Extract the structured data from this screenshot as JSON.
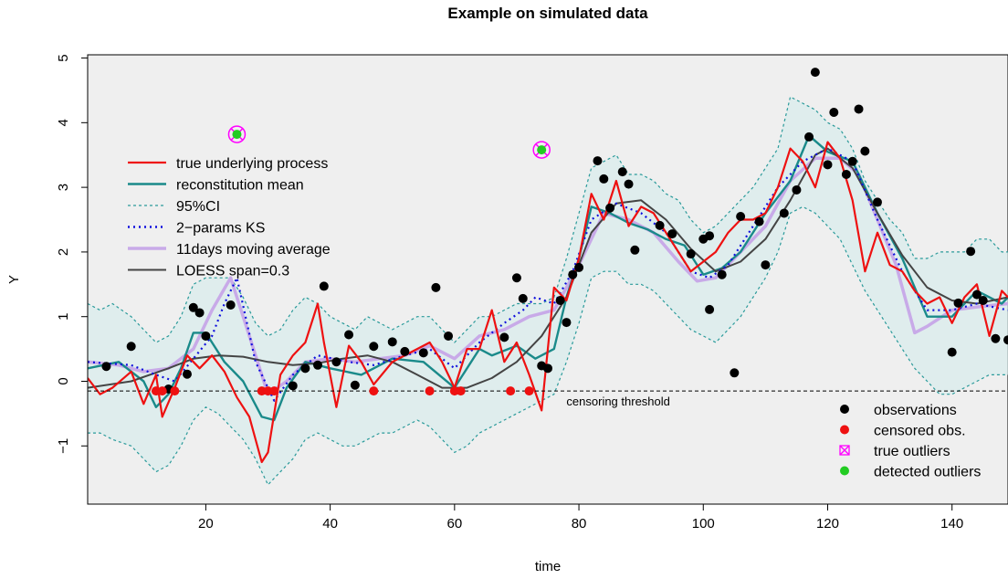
{
  "chart_data": {
    "type": "line",
    "title": "Example on simulated data",
    "xlabel": "time",
    "ylabel": "Y",
    "xlim": [
      1,
      149
    ],
    "ylim": [
      -1.9,
      5.05
    ],
    "x_ticks": [
      20,
      40,
      60,
      80,
      100,
      120,
      140
    ],
    "y_ticks": [
      -1,
      0,
      1,
      2,
      3,
      4,
      5
    ],
    "background": "#efefef",
    "censoring_threshold": -0.15,
    "censoring_label": "censoring threshold",
    "legend_top": [
      {
        "label": "true underlying process",
        "color": "#ee1111",
        "style": "solid"
      },
      {
        "label": "reconstitution mean",
        "color": "#1a8a8a",
        "style": "solid"
      },
      {
        "label": "95%CI",
        "color": "#2a9a9a",
        "style": "dotted"
      },
      {
        "label": "2−params KS",
        "color": "#1010dd",
        "style": "dotted"
      },
      {
        "label": "11days moving average",
        "color": "#c8aae8",
        "style": "solid"
      },
      {
        "label": "LOESS span=0.3",
        "color": "#444444",
        "style": "solid"
      }
    ],
    "legend_bottom": [
      {
        "label": "observations",
        "color": "#000000",
        "marker": "dot"
      },
      {
        "label": "censored obs.",
        "color": "#ee1111",
        "marker": "dot"
      },
      {
        "label": "true outliers",
        "color": "#ff00ff",
        "marker": "crossed-box"
      },
      {
        "label": "detected outliers",
        "color": "#22cc22",
        "marker": "dot"
      }
    ],
    "series": [
      {
        "name": "true underlying process",
        "color": "#ee1111",
        "x": [
          1,
          3,
          5,
          8,
          10,
          12,
          13,
          15,
          17,
          19,
          21,
          23,
          25,
          27,
          29,
          30,
          32,
          34,
          36,
          38,
          39,
          41,
          43,
          45,
          47,
          50,
          53,
          56,
          58,
          60,
          62,
          64,
          66,
          68,
          70,
          72,
          74,
          76,
          78,
          80,
          82,
          84,
          86,
          88,
          90,
          92,
          94,
          96,
          98,
          100,
          102,
          104,
          106,
          108,
          110,
          112,
          114,
          116,
          118,
          120,
          122,
          124,
          126,
          128,
          130,
          132,
          134,
          136,
          138,
          140,
          142,
          144,
          146,
          148,
          149
        ],
        "y": [
          0.05,
          -0.2,
          -0.1,
          0.15,
          -0.35,
          0.1,
          -0.55,
          -0.1,
          0.4,
          0.2,
          0.4,
          0.15,
          -0.25,
          -0.55,
          -1.25,
          -1.1,
          0.1,
          0.4,
          0.6,
          1.2,
          0.6,
          -0.4,
          0.55,
          0.3,
          -0.05,
          0.3,
          0.45,
          0.6,
          0.3,
          -0.1,
          0.5,
          0.5,
          1.1,
          0.3,
          0.6,
          0.1,
          -0.45,
          1.45,
          1.25,
          1.9,
          2.9,
          2.5,
          3.1,
          2.4,
          2.7,
          2.6,
          2.3,
          2.0,
          1.7,
          1.85,
          2.0,
          2.3,
          2.5,
          2.5,
          2.6,
          3.0,
          3.6,
          3.4,
          3.0,
          3.7,
          3.45,
          2.8,
          1.7,
          2.3,
          1.8,
          1.7,
          1.4,
          1.2,
          1.3,
          0.9,
          1.3,
          1.5,
          0.7,
          1.4,
          1.3
        ]
      },
      {
        "name": "reconstitution mean",
        "color": "#1a8a8a",
        "x": [
          1,
          6,
          10,
          12,
          14,
          16,
          18,
          20,
          23,
          26,
          29,
          31,
          33,
          36,
          40,
          45,
          50,
          55,
          60,
          64,
          66,
          70,
          73,
          76,
          78,
          80,
          82,
          85,
          88,
          91,
          94,
          97,
          100,
          103,
          106,
          110,
          114,
          117,
          120,
          124,
          128,
          132,
          136,
          140,
          144,
          148,
          149
        ],
        "y": [
          0.2,
          0.3,
          0.0,
          -0.4,
          -0.2,
          0.2,
          0.75,
          0.75,
          0.3,
          0.0,
          -0.55,
          -0.6,
          -0.1,
          0.3,
          0.2,
          0.1,
          0.35,
          0.3,
          -0.1,
          0.5,
          0.4,
          0.55,
          0.35,
          0.5,
          1.3,
          1.9,
          2.7,
          2.6,
          2.45,
          2.35,
          2.2,
          2.1,
          1.65,
          1.75,
          2.0,
          2.6,
          3.1,
          3.8,
          3.55,
          3.4,
          2.6,
          1.9,
          1.0,
          1.0,
          1.4,
          1.2,
          1.3
        ]
      },
      {
        "name": "2−params KS",
        "color": "#1010dd",
        "x": [
          1,
          8,
          12,
          15,
          18,
          21,
          23,
          25,
          28,
          31,
          34,
          38,
          43,
          47,
          52,
          56,
          60,
          64,
          68,
          71,
          73,
          76,
          79,
          82,
          86,
          90,
          94,
          98,
          101,
          104,
          108,
          112,
          116,
          120,
          124,
          128,
          132,
          136,
          140,
          144,
          149
        ],
        "y": [
          0.3,
          0.25,
          0.1,
          0.0,
          0.35,
          0.7,
          1.2,
          1.6,
          0.3,
          -0.3,
          0.1,
          0.4,
          0.3,
          0.25,
          0.4,
          0.5,
          0.2,
          0.6,
          0.9,
          1.1,
          1.3,
          1.2,
          1.7,
          2.5,
          2.75,
          2.6,
          2.3,
          1.7,
          1.6,
          1.8,
          2.4,
          3.0,
          3.4,
          3.6,
          3.4,
          2.5,
          1.7,
          1.1,
          1.1,
          1.2,
          1.1
        ]
      },
      {
        "name": "11days moving average",
        "color": "#c8aae8",
        "x": [
          1,
          6,
          10,
          14,
          18,
          21,
          24,
          27,
          30,
          33,
          36,
          40,
          44,
          48,
          52,
          56,
          60,
          64,
          68,
          72,
          76,
          80,
          84,
          88,
          92,
          96,
          99,
          102,
          106,
          110,
          114,
          118,
          122,
          125,
          128,
          131,
          134,
          136,
          140,
          144,
          149
        ],
        "y": [
          0.3,
          0.25,
          0.15,
          0.2,
          0.5,
          1.1,
          1.6,
          0.7,
          -0.2,
          0.0,
          0.3,
          0.35,
          0.3,
          0.35,
          0.4,
          0.55,
          0.35,
          0.7,
          0.8,
          1.0,
          1.1,
          1.8,
          2.6,
          2.5,
          2.3,
          1.85,
          1.55,
          1.6,
          2.0,
          2.4,
          3.1,
          3.45,
          3.45,
          3.2,
          2.5,
          1.8,
          0.75,
          0.85,
          1.1,
          1.15,
          1.2
        ]
      },
      {
        "name": "LOESS span=0.3",
        "color": "#444444",
        "x": [
          1,
          8,
          14,
          18,
          22,
          26,
          30,
          34,
          38,
          42,
          46,
          50,
          54,
          58,
          62,
          66,
          70,
          74,
          78,
          82,
          86,
          90,
          94,
          98,
          102,
          106,
          110,
          114,
          118,
          120,
          124,
          128,
          132,
          136,
          140,
          144,
          149
        ],
        "y": [
          -0.1,
          0.0,
          0.2,
          0.35,
          0.4,
          0.38,
          0.3,
          0.25,
          0.28,
          0.35,
          0.4,
          0.3,
          0.1,
          -0.1,
          -0.1,
          0.05,
          0.3,
          0.7,
          1.3,
          2.3,
          2.75,
          2.8,
          2.5,
          2.05,
          1.7,
          1.85,
          2.2,
          2.8,
          3.5,
          3.6,
          3.3,
          2.6,
          1.95,
          1.45,
          1.25,
          1.2,
          1.3
        ]
      }
    ],
    "ci_upper": {
      "x": [
        1,
        3,
        5,
        8,
        10,
        12,
        14,
        16,
        18,
        20,
        22,
        24,
        26,
        28,
        30,
        32,
        34,
        36,
        38,
        40,
        42,
        44,
        46,
        48,
        50,
        52,
        54,
        56,
        58,
        60,
        62,
        64,
        66,
        68,
        70,
        72,
        74,
        76,
        78,
        80,
        82,
        84,
        86,
        88,
        90,
        92,
        94,
        96,
        98,
        100,
        102,
        104,
        106,
        108,
        110,
        112,
        114,
        116,
        118,
        120,
        122,
        124,
        126,
        128,
        130,
        132,
        134,
        136,
        138,
        140,
        142,
        144,
        146,
        148,
        149
      ],
      "y": [
        1.2,
        1.1,
        1.2,
        1.0,
        0.8,
        0.6,
        0.7,
        1.0,
        1.5,
        1.6,
        1.6,
        1.6,
        1.3,
        0.9,
        0.7,
        0.8,
        1.1,
        1.3,
        1.2,
        1.0,
        0.9,
        0.8,
        1.0,
        0.9,
        0.8,
        0.9,
        1.0,
        1.0,
        0.8,
        0.6,
        0.8,
        1.0,
        1.0,
        1.1,
        1.2,
        1.2,
        1.2,
        1.3,
        1.9,
        2.6,
        3.3,
        3.4,
        3.5,
        3.2,
        3.2,
        3.1,
        2.9,
        2.8,
        2.5,
        2.3,
        2.4,
        2.6,
        2.8,
        3.0,
        3.3,
        3.6,
        4.4,
        4.3,
        4.2,
        4.0,
        3.9,
        3.6,
        3.1,
        2.8,
        2.5,
        2.3,
        1.9,
        1.9,
        2.0,
        2.0,
        2.0,
        2.2,
        2.2,
        2.0,
        2.0
      ]
    },
    "ci_lower": {
      "x": [
        1,
        3,
        5,
        8,
        10,
        12,
        14,
        16,
        18,
        20,
        22,
        24,
        26,
        28,
        30,
        32,
        34,
        36,
        38,
        40,
        42,
        44,
        46,
        48,
        50,
        52,
        54,
        56,
        58,
        60,
        62,
        64,
        66,
        68,
        70,
        72,
        74,
        76,
        78,
        80,
        82,
        84,
        86,
        88,
        90,
        92,
        94,
        96,
        98,
        100,
        102,
        104,
        106,
        108,
        110,
        112,
        114,
        116,
        118,
        120,
        122,
        124,
        126,
        128,
        130,
        132,
        134,
        136,
        138,
        140,
        142,
        144,
        146,
        148,
        149
      ],
      "y": [
        -0.8,
        -0.8,
        -0.9,
        -1.0,
        -1.2,
        -1.4,
        -1.3,
        -1.0,
        -0.6,
        -0.4,
        -0.5,
        -0.7,
        -0.9,
        -1.2,
        -1.6,
        -1.4,
        -1.2,
        -0.9,
        -0.8,
        -0.9,
        -1.0,
        -1.0,
        -0.9,
        -0.8,
        -0.8,
        -0.7,
        -0.6,
        -0.7,
        -0.9,
        -1.1,
        -1.0,
        -0.8,
        -0.7,
        -0.6,
        -0.5,
        -0.4,
        -0.3,
        -0.2,
        0.3,
        0.9,
        1.6,
        1.7,
        1.7,
        1.5,
        1.5,
        1.4,
        1.2,
        1.0,
        0.8,
        0.7,
        0.6,
        0.8,
        1.0,
        1.3,
        1.6,
        2.0,
        2.6,
        2.7,
        2.6,
        2.4,
        2.2,
        1.8,
        1.4,
        1.1,
        0.8,
        0.5,
        0.2,
        0.0,
        -0.2,
        -0.2,
        -0.1,
        0.0,
        0.1,
        0.1,
        0.1
      ]
    },
    "observations": {
      "x": [
        4,
        8,
        14,
        17,
        18,
        19,
        20,
        24,
        34,
        36,
        38,
        39,
        41,
        43,
        44,
        47,
        50,
        52,
        55,
        57,
        59,
        68,
        70,
        71,
        74,
        75,
        77,
        78,
        79,
        80,
        83,
        84,
        85,
        87,
        88,
        89,
        93,
        95,
        98,
        100,
        101,
        101,
        103,
        105,
        106,
        109,
        110,
        113,
        115,
        117,
        118,
        120,
        121,
        123,
        124,
        125,
        126,
        128,
        140,
        141,
        143,
        144,
        145,
        147,
        149
      ],
      "y": [
        0.23,
        0.54,
        -0.12,
        0.11,
        1.14,
        1.06,
        0.7,
        1.18,
        -0.07,
        0.2,
        0.25,
        1.47,
        0.3,
        0.72,
        -0.06,
        0.54,
        0.61,
        0.46,
        0.44,
        1.45,
        0.7,
        0.68,
        1.6,
        1.28,
        0.24,
        0.2,
        1.25,
        0.91,
        1.65,
        1.76,
        3.41,
        3.13,
        2.68,
        3.24,
        3.05,
        2.03,
        2.41,
        2.28,
        1.97,
        2.2,
        2.25,
        1.11,
        1.65,
        0.13,
        2.55,
        2.47,
        1.8,
        2.6,
        2.96,
        3.78,
        4.78,
        3.35,
        4.16,
        3.2,
        3.4,
        4.21,
        3.56,
        2.77,
        0.45,
        1.21,
        2.01,
        1.34,
        1.25,
        0.66,
        0.64
      ]
    },
    "censored": {
      "x": [
        12,
        13,
        15,
        29,
        30,
        31,
        47,
        56,
        60,
        61,
        69,
        72
      ],
      "y": [
        -0.15,
        -0.15,
        -0.15,
        -0.15,
        -0.15,
        -0.15,
        -0.15,
        -0.15,
        -0.15,
        -0.15,
        -0.15,
        -0.15
      ]
    },
    "outliers": {
      "x": [
        25,
        74
      ],
      "y": [
        3.82,
        3.58
      ]
    }
  }
}
